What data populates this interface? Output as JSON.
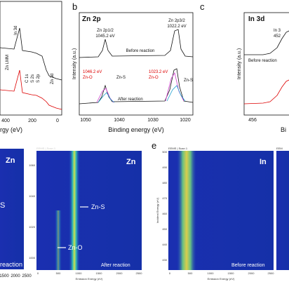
{
  "panel_a": {
    "peaks": [
      "In 3d",
      "Zn LMM",
      "C 1s",
      "S 2s",
      "S 2p",
      "Zn 3d"
    ],
    "xticks": [
      "400",
      "200",
      "0"
    ],
    "xlabel": "rgy (eV)"
  },
  "panel_b": {
    "letter": "b",
    "title": "Zn 2p",
    "peak1": "Zn 2p1/2",
    "peak1_energy": "1045.2 eV",
    "peak2": "Zn 2p3/2",
    "peak2_energy": "1022.2 eV",
    "before": "Before reaction",
    "after": "After reaction",
    "fit1_energy": "1046.2 eV",
    "fit1_zno": "Zn-O",
    "fit1_zns": "Zn-S",
    "fit2_energy": "1023.2 eV",
    "fit2_zno": "Zn-O",
    "fit2_zns": "Zn-S",
    "ylabel": "Intensity (a.u.)",
    "xticks": [
      "1050",
      "1040",
      "1030",
      "1020"
    ],
    "xlabel": "Binding energy (eV)"
  },
  "panel_c": {
    "letter": "c",
    "title": "In 3d",
    "peak": "In 3",
    "peak_energy": "452",
    "before": "Before reaction",
    "ylabel": "Intensity (a.u.)",
    "xticks": [
      "456"
    ],
    "xlabel": "Bi"
  },
  "panel_d": {
    "left_title": "Zn",
    "left_label": "S",
    "left_note": "reaction",
    "left_xticks": [
      "1500",
      "2000",
      "2500"
    ],
    "scan": "EEMS | Scan 1",
    "title": "Zn",
    "zns": "Zn-S",
    "zno": "Zn-O",
    "note": "After reaction",
    "yticks": [
      "1060",
      "1040",
      "1020",
      "1000"
    ],
    "xticks": [
      "0",
      "500",
      "1000",
      "1500",
      "2000",
      "2500"
    ],
    "xlabel": "Emission Energy (eV)"
  },
  "panel_e": {
    "letter": "e",
    "scan": "EEMS | Scan 1",
    "title": "In",
    "note": "Before reaction",
    "ylabel": "Incident Energy (eV)",
    "yticks": [
      "500",
      "490",
      "480",
      "470",
      "460",
      "450",
      "440",
      "430"
    ],
    "xticks": [
      "0",
      "500",
      "1000",
      "1500",
      "2000",
      "2500"
    ],
    "xlabel": "Emission Energy (eV)",
    "right_scan": "EEM"
  }
}
